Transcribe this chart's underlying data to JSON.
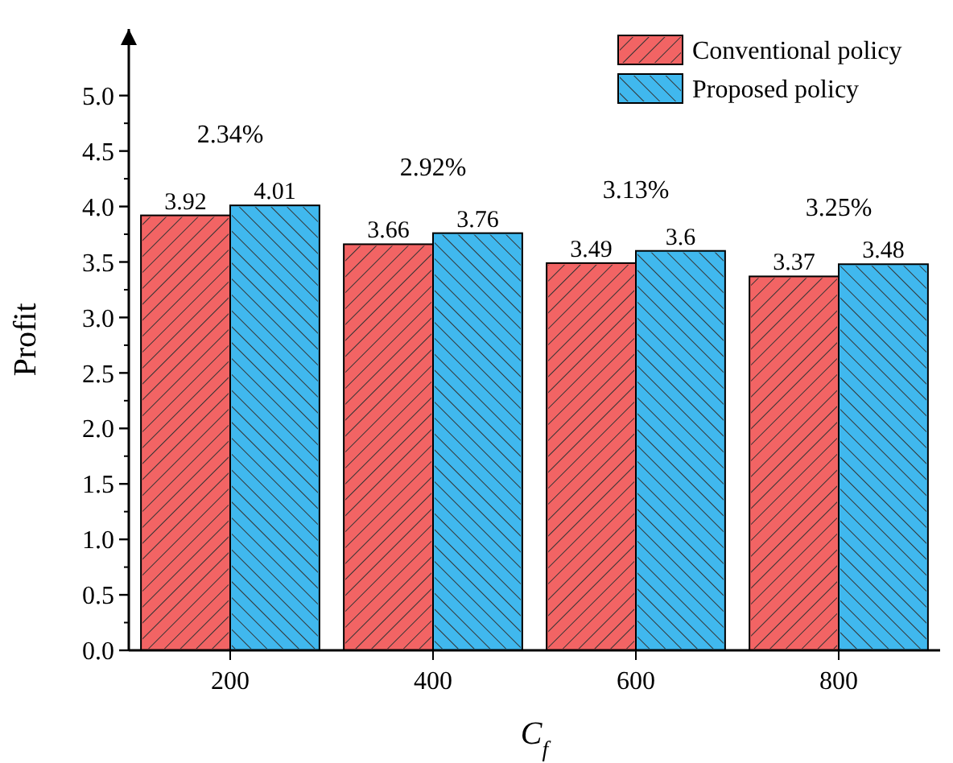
{
  "chart_data": {
    "type": "bar",
    "xlabel": "C$_{f}$",
    "ylabel": "Profit",
    "categories": [
      "200",
      "400",
      "600",
      "800"
    ],
    "series": [
      {
        "name": "Conventional policy",
        "color": "#f26464",
        "values": [
          3.92,
          3.66,
          3.49,
          3.37
        ]
      },
      {
        "name": "Proposed policy",
        "color": "#40b8ee",
        "values": [
          4.01,
          3.76,
          3.6,
          3.48
        ]
      }
    ],
    "ylim": [
      0,
      5.6
    ],
    "yticks": [
      {
        "value": 0,
        "label": "0.0"
      },
      {
        "value": 0.5,
        "label": "0.5"
      },
      {
        "value": 1,
        "label": "1.0"
      },
      {
        "value": 1.5,
        "label": "1.5"
      },
      {
        "value": 2,
        "label": "2.0"
      },
      {
        "value": 2.5,
        "label": "2.5"
      },
      {
        "value": 3,
        "label": "3.0"
      },
      {
        "value": 3.5,
        "label": "3.5"
      },
      {
        "value": 4,
        "label": "4.0"
      },
      {
        "value": 4.5,
        "label": "4.5"
      },
      {
        "value": 5,
        "label": "5.0"
      }
    ],
    "annotations": [
      "2.34%",
      "2.92%",
      "3.13%",
      "3.25%"
    ],
    "data_labels": true,
    "legend": "top right",
    "grid": false
  }
}
